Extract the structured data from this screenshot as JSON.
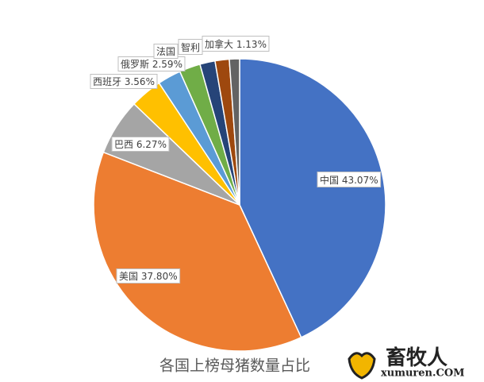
{
  "chart_data": {
    "type": "pie",
    "title": "各国上榜母猪数量占比",
    "categories": [
      "中国",
      "美国",
      "巴西",
      "西班牙",
      "俄罗斯",
      "法国",
      "智利",
      null,
      "加拿大"
    ],
    "values": [
      43.07,
      37.8,
      6.27,
      3.56,
      2.59,
      2.33,
      1.68,
      1.57,
      1.13
    ],
    "value_labels": [
      "43.07%",
      "37.80%",
      "6.27%",
      "3.56%",
      "2.59%",
      null,
      null,
      null,
      "1.13%"
    ],
    "colors": [
      "#4472c4",
      "#ed7d31",
      "#a5a5a5",
      "#ffc000",
      "#5b9bd5",
      "#70ad47",
      "#264478",
      "#9e480e",
      "#636363"
    ]
  },
  "watermark": {
    "name": "畜牧人",
    "site": "xumuren.COM"
  }
}
